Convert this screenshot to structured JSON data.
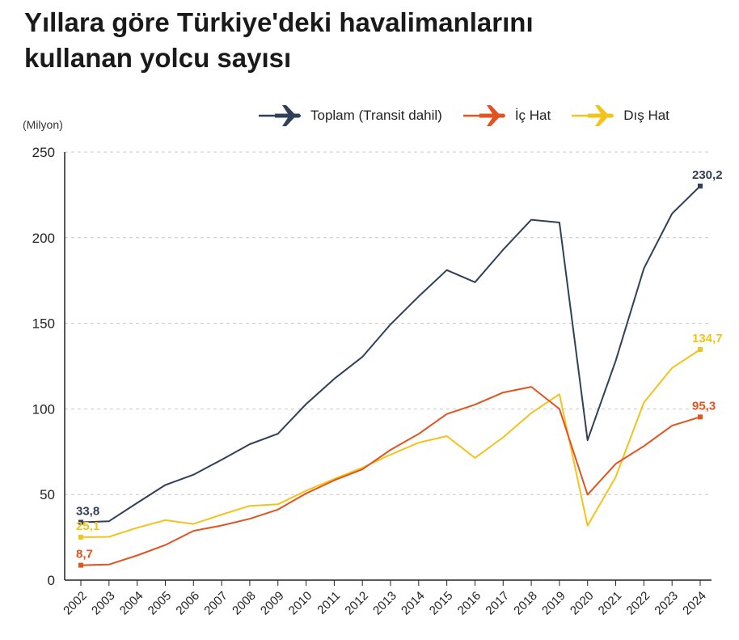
{
  "title": {
    "line1": "Yıllara göre Türkiye'deki havalimanlarını",
    "line2": "kullanan yolcu sayısı"
  },
  "unit_label": "(Milyon)",
  "legend": [
    {
      "label": "Toplam (Transit dahil)",
      "color": "#2f4058",
      "icon": "airplane-icon"
    },
    {
      "label": "İç Hat",
      "color": "#e2531f",
      "icon": "airplane-icon"
    },
    {
      "label": "Dış Hat",
      "color": "#f2c31a",
      "icon": "airplane-icon"
    }
  ],
  "chart_data": {
    "type": "line",
    "title": "Yıllara göre Türkiye'deki havalimanlarını kullanan yolcu sayısı",
    "xlabel": "",
    "ylabel": "(Milyon)",
    "ylim": [
      0,
      250
    ],
    "yticks": [
      "0",
      "50",
      "100",
      "150",
      "200",
      "250"
    ],
    "grid": true,
    "legend_position": "top-right",
    "categories": [
      "2002",
      "2003",
      "2004",
      "2005",
      "2006",
      "2007",
      "2008",
      "2009",
      "2010",
      "2011",
      "2012",
      "2013",
      "2014",
      "2015",
      "2016",
      "2017",
      "2018",
      "2019",
      "2020",
      "2021",
      "2022",
      "2023",
      "2024"
    ],
    "series": [
      {
        "name": "Toplam (Transit dahil)",
        "color": "#2f4058",
        "values": [
          33.8,
          34.4,
          45.1,
          55.6,
          61.6,
          70.3,
          79.4,
          85.5,
          102.8,
          117.6,
          130.4,
          149.4,
          165.7,
          181.1,
          174.0,
          193.0,
          210.5,
          208.9,
          81.7,
          128.1,
          182.1,
          214.1,
          230.2
        ],
        "first_label": "33,8",
        "last_label": "230,2"
      },
      {
        "name": "İç Hat",
        "color": "#e2531f",
        "values": [
          8.7,
          9.1,
          14.4,
          20.5,
          28.8,
          31.9,
          35.8,
          41.2,
          50.6,
          58.3,
          64.7,
          76.1,
          85.4,
          97.0,
          102.5,
          109.6,
          112.9,
          100.0,
          49.9,
          67.9,
          78.3,
          90.2,
          95.3
        ],
        "first_label": "8,7",
        "last_label": "95,3"
      },
      {
        "name": "Dış Hat",
        "color": "#f2c31a",
        "values": [
          25.1,
          25.3,
          30.6,
          35.0,
          32.8,
          38.3,
          43.4,
          44.3,
          52.2,
          59.1,
          65.7,
          73.3,
          80.3,
          84.1,
          71.4,
          83.4,
          97.6,
          108.6,
          31.8,
          60.2,
          103.8,
          123.9,
          134.7
        ],
        "first_label": "25,1",
        "last_label": "134,7"
      }
    ]
  }
}
